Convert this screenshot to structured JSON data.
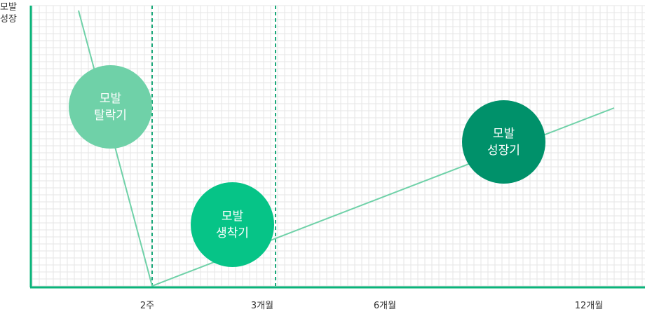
{
  "y_axis_title": [
    "모발",
    "성장"
  ],
  "x_ticks": [
    {
      "label": "2주"
    },
    {
      "label": "3개월"
    },
    {
      "label": "6개월"
    },
    {
      "label": "12개월"
    }
  ],
  "phases": [
    {
      "line1": "모발",
      "line2": "탈락기"
    },
    {
      "line1": "모발",
      "line2": "생착기"
    },
    {
      "line1": "모발",
      "line2": "성장기"
    }
  ],
  "colors": {
    "axis": "#0ab47a",
    "growth_line": "#6fd1a8",
    "divider": "#1aa879",
    "grid": "#e6e6e6",
    "phase_shedding": "#6fd1a8",
    "phase_engraftment": "#06c487",
    "phase_growth": "#00916a"
  }
}
